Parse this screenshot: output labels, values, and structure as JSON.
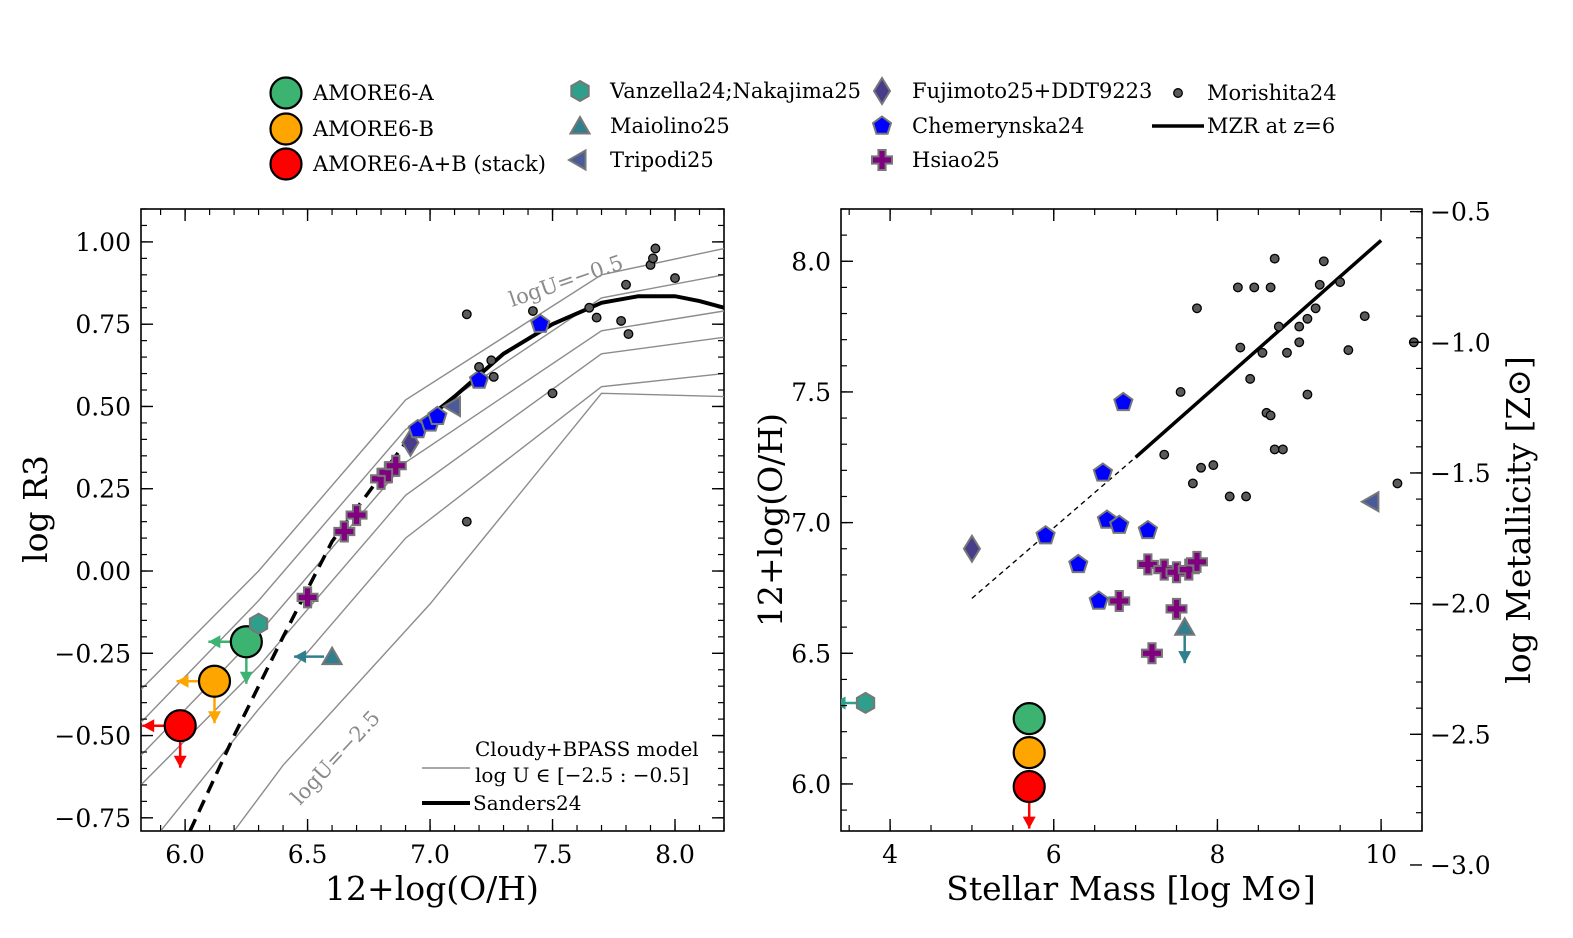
{
  "colors": {
    "amore_a": "#3cb371",
    "amore_b": "#ffa500",
    "stack": "#ff0000",
    "vanzella": "#2e9f8a",
    "maiolino": "#2f7f8f",
    "tripodi": "#4a5a9a",
    "fujimoto": "#483d8b",
    "chemerynska": "#0000ff",
    "hsiao": "#800080",
    "morishita": "#555555",
    "model_grid": "#8c8c8c"
  },
  "legend": {
    "amore_a": "AMORE6-A",
    "amore_b": "AMORE6-B",
    "stack": "AMORE6-A+B (stack)",
    "vanzella": "Vanzella24;Nakajima25",
    "maiolino": "Maiolino25",
    "tripodi": "Tripodi25",
    "fujimoto": "Fujimoto25+DDT9223",
    "chemerynska": "Chemerynska24",
    "hsiao": "Hsiao25",
    "morishita": "Morishita24",
    "mzr": "MZR at z=6"
  },
  "chart_data": [
    {
      "type": "scatter",
      "xlabel": "12+log(O/H)",
      "ylabel": "log R3",
      "xlim": [
        5.82,
        8.2
      ],
      "ylim": [
        -0.79,
        1.1
      ],
      "xticks": [
        "6.0",
        "6.5",
        "7.0",
        "7.5",
        "8.0"
      ],
      "yticks": [
        "1.00",
        "0.75",
        "0.50",
        "0.25",
        "0.00",
        "−0.25",
        "−0.50",
        "−0.75"
      ],
      "xtick_values": [
        6.0,
        6.5,
        7.0,
        7.5,
        8.0
      ],
      "ytick_values": [
        1.0,
        0.75,
        0.5,
        0.25,
        0.0,
        -0.25,
        -0.5,
        -0.75
      ],
      "annotations": {
        "logu_top": "logU=−0.5",
        "logu_bottom": "logU=−2.5",
        "model_title": "Cloudy+BPASS model",
        "model_range": "log U ∈ [−2.5 : −0.5]",
        "sanders": "Sanders24"
      },
      "series": [
        {
          "key": "amore_a",
          "marker": "circle",
          "points": [
            [
              6.25,
              -0.215
            ]
          ],
          "upper_limit_x": true,
          "upper_limit_y": true
        },
        {
          "key": "amore_b",
          "marker": "circle",
          "points": [
            [
              6.12,
              -0.335
            ]
          ],
          "upper_limit_x": true,
          "upper_limit_y": true
        },
        {
          "key": "stack",
          "marker": "circle",
          "points": [
            [
              5.98,
              -0.47
            ]
          ],
          "upper_limit_x": true,
          "upper_limit_y": true
        },
        {
          "key": "vanzella",
          "marker": "hexagon",
          "points": [
            [
              6.3,
              -0.16
            ]
          ]
        },
        {
          "key": "maiolino",
          "marker": "triangle",
          "points": [
            [
              6.6,
              -0.26
            ]
          ],
          "upper_limit_x": true
        },
        {
          "key": "tripodi",
          "marker": "triangle-left",
          "points": [
            [
              7.1,
              0.5
            ]
          ]
        },
        {
          "key": "fujimoto",
          "marker": "diamond",
          "points": [
            [
              6.92,
              0.39
            ]
          ]
        },
        {
          "key": "chemerynska",
          "marker": "pentagon",
          "points": [
            [
              6.95,
              0.43
            ],
            [
              7.0,
              0.45
            ],
            [
              7.03,
              0.47
            ],
            [
              7.2,
              0.58
            ],
            [
              7.45,
              0.75
            ]
          ]
        },
        {
          "key": "hsiao",
          "marker": "plus",
          "points": [
            [
              6.5,
              -0.08
            ],
            [
              6.65,
              0.12
            ],
            [
              6.7,
              0.17
            ],
            [
              6.8,
              0.28
            ],
            [
              6.83,
              0.3
            ],
            [
              6.86,
              0.32
            ]
          ]
        },
        {
          "key": "morishita",
          "marker": "dot",
          "points": [
            [
              7.15,
              0.78
            ],
            [
              7.15,
              0.15
            ],
            [
              7.2,
              0.62
            ],
            [
              7.25,
              0.64
            ],
            [
              7.26,
              0.59
            ],
            [
              7.42,
              0.79
            ],
            [
              7.5,
              0.54
            ],
            [
              7.65,
              0.8
            ],
            [
              7.68,
              0.77
            ],
            [
              7.78,
              0.76
            ],
            [
              7.8,
              0.87
            ],
            [
              7.81,
              0.72
            ],
            [
              7.9,
              0.93
            ],
            [
              7.91,
              0.95
            ],
            [
              7.92,
              0.98
            ],
            [
              8.0,
              0.89
            ]
          ]
        }
      ],
      "sanders_curve": {
        "solid_x": [
          6.95,
          7.1,
          7.3,
          7.5,
          7.7,
          7.85,
          8.0,
          8.1,
          8.2
        ],
        "solid_y": [
          0.44,
          0.53,
          0.66,
          0.75,
          0.815,
          0.835,
          0.835,
          0.82,
          0.8
        ],
        "dashed_x": [
          6.02,
          6.2,
          6.4,
          6.6,
          6.8,
          6.95
        ],
        "dashed_y": [
          -0.79,
          -0.5,
          -0.2,
          0.09,
          0.29,
          0.44
        ]
      },
      "model_grid": [
        {
          "x": [
            5.82,
            6.3,
            6.9,
            7.7,
            8.2
          ],
          "y": [
            -0.36,
            0.0,
            0.52,
            0.9,
            0.98
          ]
        },
        {
          "x": [
            5.82,
            6.3,
            6.9,
            7.7,
            8.2
          ],
          "y": [
            -0.46,
            -0.09,
            0.43,
            0.83,
            0.9
          ]
        },
        {
          "x": [
            5.82,
            6.3,
            6.9,
            7.7,
            8.2
          ],
          "y": [
            -0.56,
            -0.19,
            0.33,
            0.73,
            0.79
          ]
        },
        {
          "x": [
            5.82,
            6.3,
            6.9,
            7.7,
            8.2
          ],
          "y": [
            -0.65,
            -0.29,
            0.23,
            0.66,
            0.71
          ]
        },
        {
          "x": [
            5.9,
            6.3,
            6.9,
            7.7,
            8.2
          ],
          "y": [
            -0.79,
            -0.42,
            0.1,
            0.56,
            0.6
          ]
        },
        {
          "x": [
            6.2,
            6.4,
            7.0,
            7.7,
            8.2
          ],
          "y": [
            -0.79,
            -0.59,
            -0.1,
            0.54,
            0.53
          ]
        }
      ]
    },
    {
      "type": "scatter",
      "xlabel": "Stellar Mass [log M⊙]",
      "ylabel": "12+log(O/H)",
      "ylabel_right": "log Metallicity [Z⊙]",
      "xlim": [
        3.4,
        10.5
      ],
      "ylim": [
        5.82,
        8.2
      ],
      "xticks": [
        "4",
        "6",
        "8",
        "10"
      ],
      "xtick_values": [
        4,
        6,
        8,
        10
      ],
      "yticks": [
        "8.0",
        "7.5",
        "7.0",
        "6.5",
        "6.0"
      ],
      "ytick_values": [
        8.0,
        7.5,
        7.0,
        6.5,
        6.0
      ],
      "yticks_right": [
        "−0.5",
        "−1.0",
        "−1.5",
        "−2.0",
        "−2.5",
        "−3.0"
      ],
      "ytick_right_values": [
        -0.5,
        -1.0,
        -1.5,
        -2.0,
        -2.5,
        -3.0
      ],
      "series": [
        {
          "key": "amore_a",
          "marker": "circle",
          "points": [
            [
              5.7,
              6.25
            ]
          ]
        },
        {
          "key": "amore_b",
          "marker": "circle",
          "points": [
            [
              5.7,
              6.12
            ]
          ]
        },
        {
          "key": "stack",
          "marker": "circle",
          "points": [
            [
              5.7,
              5.99
            ]
          ],
          "upper_limit_y": true
        },
        {
          "key": "vanzella",
          "marker": "hexagon",
          "points": [
            [
              3.7,
              6.31
            ]
          ],
          "upper_limit_x": true
        },
        {
          "key": "maiolino",
          "marker": "triangle",
          "points": [
            [
              7.6,
              6.6
            ]
          ],
          "upper_limit_y": true
        },
        {
          "key": "tripodi",
          "marker": "triangle-left",
          "points": [
            [
              9.9,
              7.08
            ]
          ]
        },
        {
          "key": "fujimoto",
          "marker": "diamond",
          "points": [
            [
              5.0,
              6.9
            ]
          ]
        },
        {
          "key": "chemerynska",
          "marker": "pentagon",
          "points": [
            [
              5.9,
              6.95
            ],
            [
              6.3,
              6.84
            ],
            [
              6.55,
              6.7
            ],
            [
              6.6,
              7.19
            ],
            [
              6.65,
              7.01
            ],
            [
              6.8,
              6.99
            ],
            [
              6.85,
              7.46
            ],
            [
              7.15,
              6.97
            ]
          ]
        },
        {
          "key": "hsiao",
          "marker": "plus",
          "points": [
            [
              6.8,
              6.7
            ],
            [
              7.15,
              6.84
            ],
            [
              7.2,
              6.5
            ],
            [
              7.35,
              6.82
            ],
            [
              7.5,
              6.67
            ],
            [
              7.5,
              6.81
            ],
            [
              7.65,
              6.82
            ],
            [
              7.75,
              6.85
            ]
          ]
        },
        {
          "key": "morishita",
          "marker": "dot",
          "points": [
            [
              7.35,
              7.26
            ],
            [
              7.55,
              7.5
            ],
            [
              7.7,
              7.15
            ],
            [
              7.75,
              7.82
            ],
            [
              7.8,
              7.21
            ],
            [
              7.95,
              7.22
            ],
            [
              8.15,
              7.1
            ],
            [
              8.25,
              7.9
            ],
            [
              8.28,
              7.67
            ],
            [
              8.35,
              7.1
            ],
            [
              8.4,
              7.55
            ],
            [
              8.45,
              7.9
            ],
            [
              8.55,
              7.65
            ],
            [
              8.6,
              7.42
            ],
            [
              8.65,
              7.41
            ],
            [
              8.65,
              7.9
            ],
            [
              8.7,
              8.01
            ],
            [
              8.7,
              7.28
            ],
            [
              8.75,
              7.75
            ],
            [
              8.8,
              7.28
            ],
            [
              8.85,
              7.65
            ],
            [
              9.0,
              7.69
            ],
            [
              9.0,
              7.75
            ],
            [
              9.1,
              7.49
            ],
            [
              9.1,
              7.78
            ],
            [
              9.2,
              7.82
            ],
            [
              9.25,
              7.91
            ],
            [
              9.3,
              8.0
            ],
            [
              9.5,
              7.92
            ],
            [
              9.6,
              7.66
            ],
            [
              9.8,
              7.79
            ],
            [
              10.2,
              7.15
            ],
            [
              10.4,
              7.69
            ]
          ]
        }
      ],
      "mzr_line": {
        "dashed_x": [
          5.0,
          7.0
        ],
        "dashed_y": [
          6.71,
          7.25
        ],
        "solid_x": [
          7.0,
          10.0
        ],
        "solid_y": [
          7.25,
          8.08
        ]
      }
    }
  ]
}
